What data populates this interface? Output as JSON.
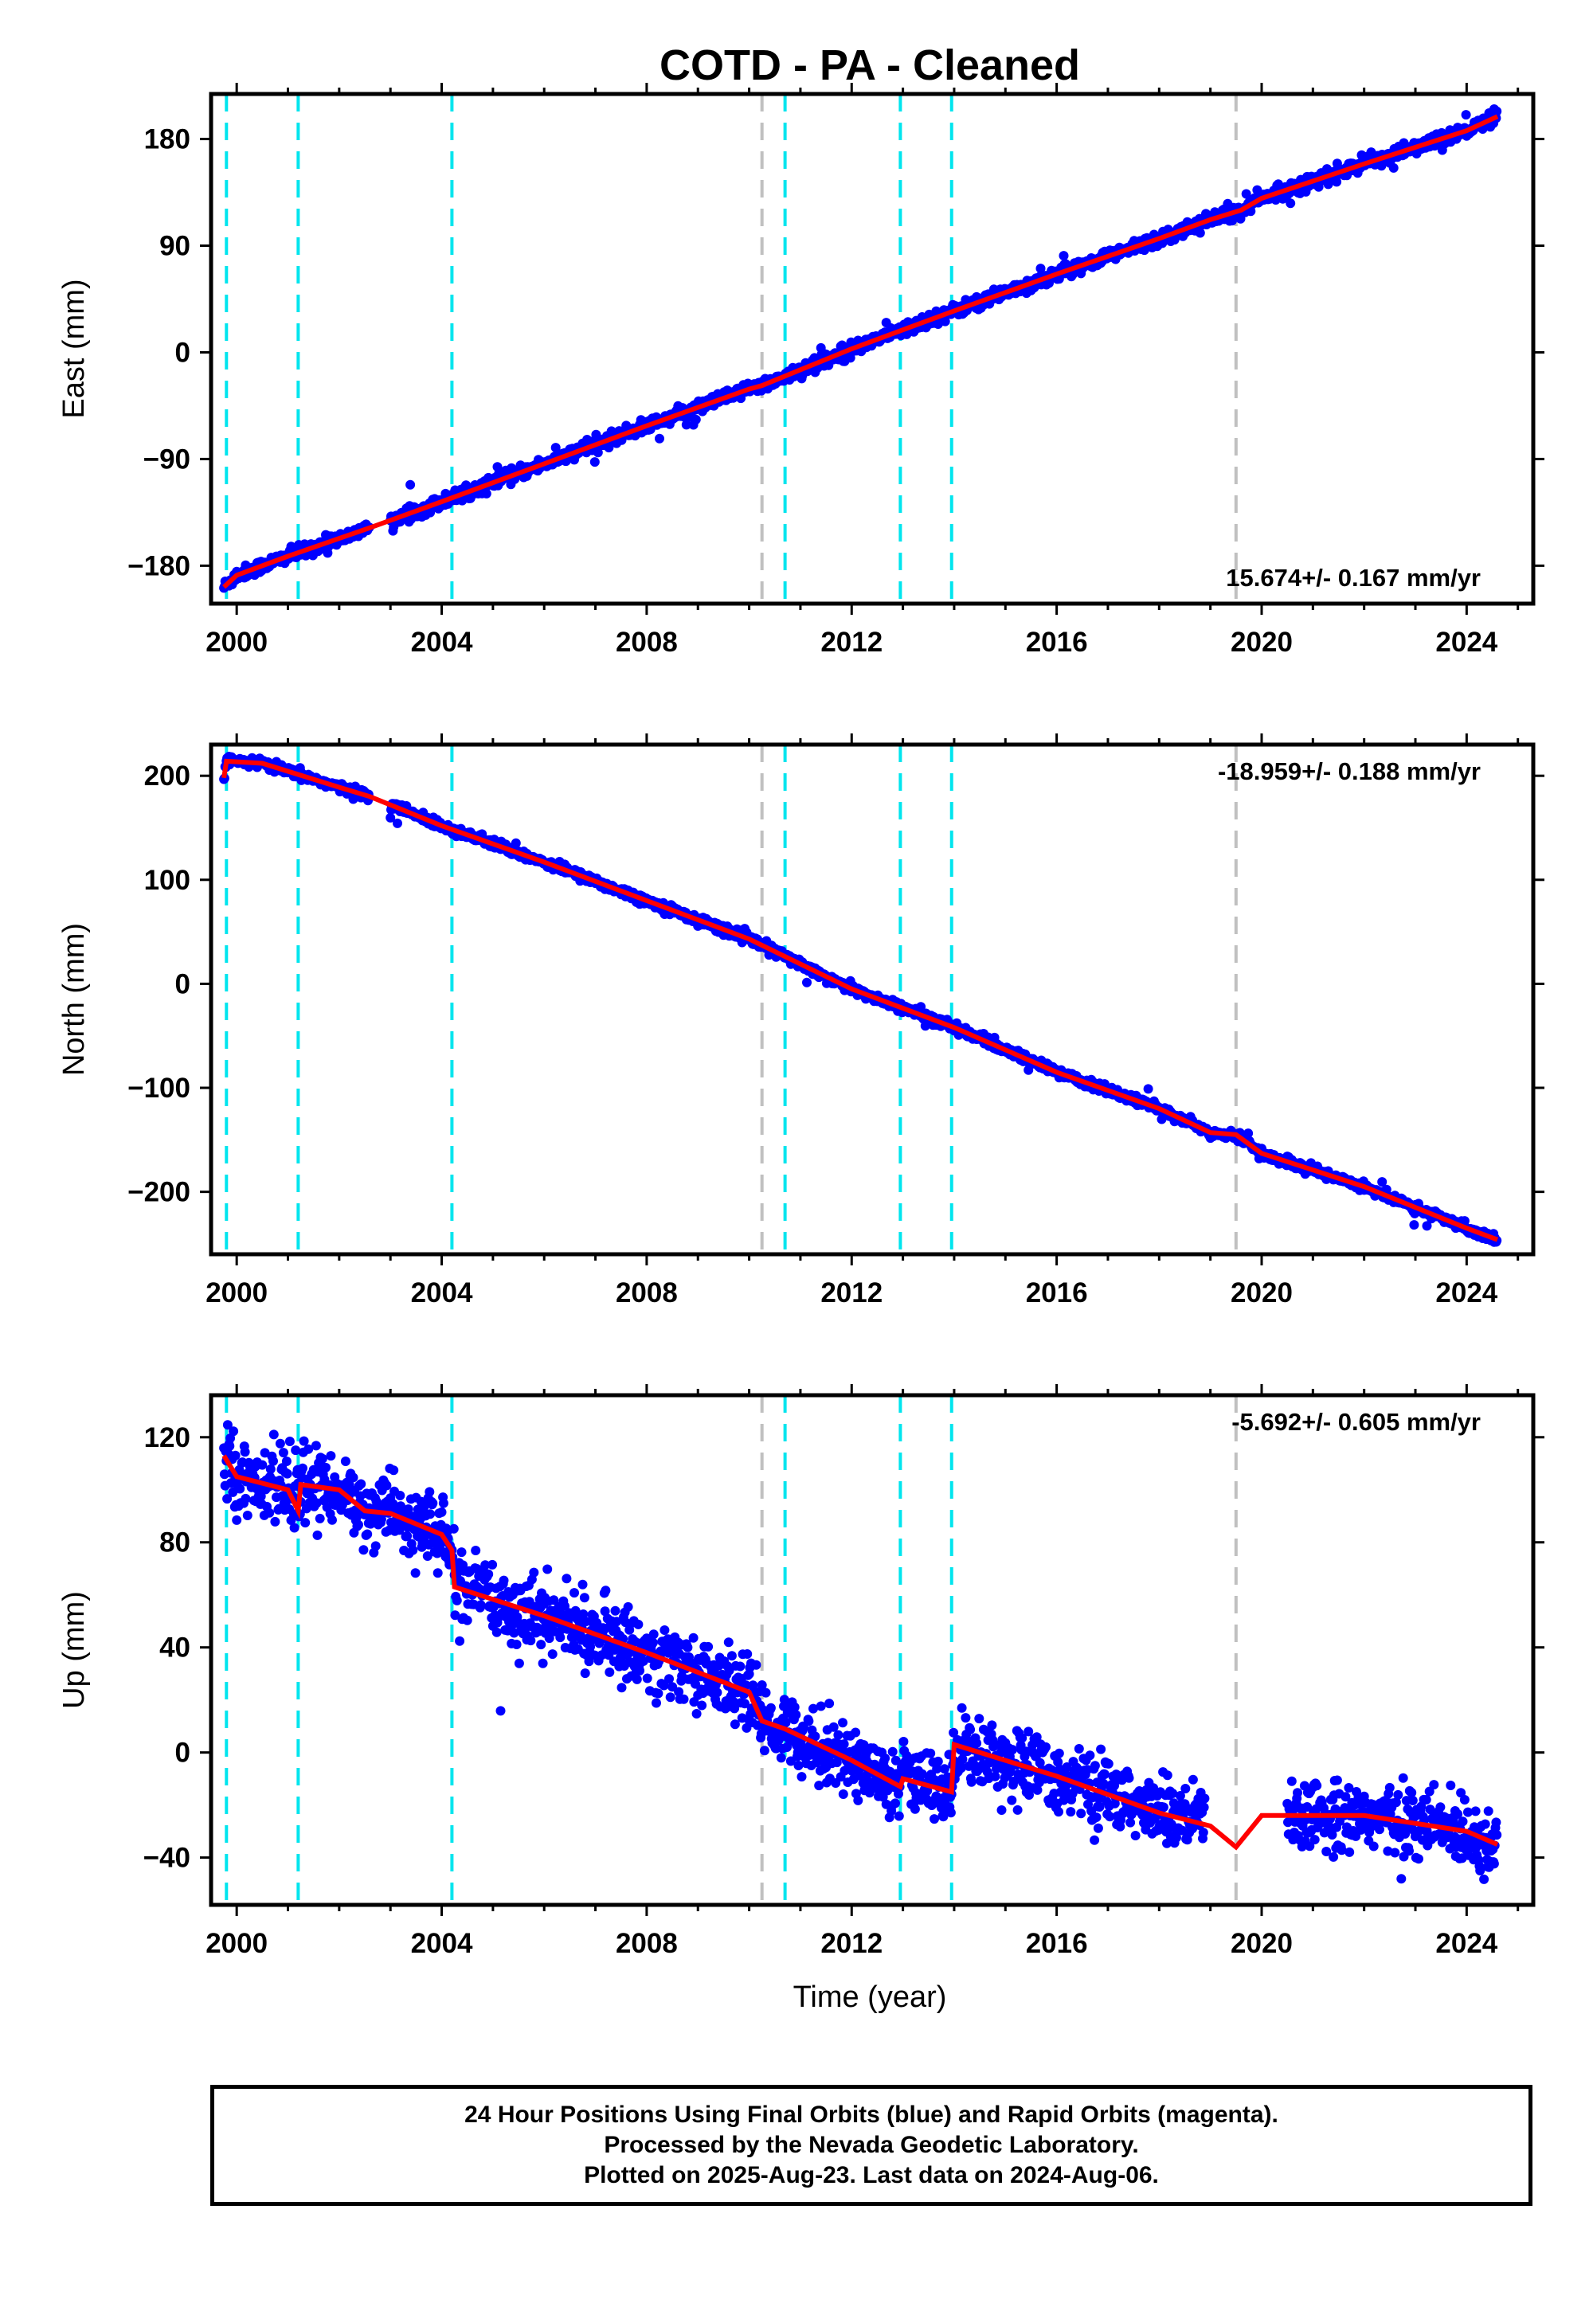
{
  "title": "COTD  - PA - Cleaned",
  "xlabel": "Time (year)",
  "x_ticks": [
    2000,
    2004,
    2008,
    2012,
    2016,
    2020,
    2024
  ],
  "xlim": [
    1999.5,
    2025.3
  ],
  "event_lines": [
    {
      "year": 1999.8,
      "color": "#00e5ee",
      "style": "dashed"
    },
    {
      "year": 2001.2,
      "color": "#00e5ee",
      "style": "dashed"
    },
    {
      "year": 2004.2,
      "color": "#00e5ee",
      "style": "dashed"
    },
    {
      "year": 2010.25,
      "color": "#c0c0c0",
      "style": "dashed"
    },
    {
      "year": 2010.7,
      "color": "#00e5ee",
      "style": "dashed"
    },
    {
      "year": 2012.95,
      "color": "#00e5ee",
      "style": "dashed"
    },
    {
      "year": 2013.95,
      "color": "#00e5ee",
      "style": "dashed"
    },
    {
      "year": 2019.5,
      "color": "#c0c0c0",
      "style": "dashed"
    }
  ],
  "colors": {
    "points": "#0000ff",
    "model": "#ff0000",
    "cyan": "#00e5ee",
    "gray": "#c0c0c0"
  },
  "chart_data": [
    {
      "type": "scatter",
      "component": "East",
      "ylabel": "East (mm)",
      "ylim": [
        -212,
        218
      ],
      "y_ticks": [
        -180,
        -90,
        0,
        90,
        180
      ],
      "rate_text": "15.674+/- 0.167 mm/yr",
      "rate_position": "bottom-right",
      "series": [
        {
          "name": "24 Hour Positions Using Final Orbits (blue)",
          "points_from": "model",
          "scatter_mm": 5
        },
        {
          "name": "model",
          "x": [
            1999.75,
            2000.0,
            2001.0,
            2002.0,
            2002.6,
            2004.0,
            2006.0,
            2008.0,
            2010.0,
            2010.25,
            2012.0,
            2014.0,
            2016.0,
            2018.0,
            2019.0,
            2019.6,
            2020.0,
            2022.0,
            2024.0,
            2024.6
          ],
          "y": [
            -198,
            -188,
            -172,
            -157,
            -148,
            -126,
            -94,
            -62,
            -31,
            -28,
            3,
            35,
            66,
            96,
            112,
            120,
            130,
            159,
            187,
            199
          ]
        }
      ],
      "gap": [
        2002.6,
        2003.0
      ]
    },
    {
      "type": "scatter",
      "component": "North",
      "ylabel": "North (mm)",
      "ylim": [
        -260,
        230
      ],
      "y_ticks": [
        -200,
        -100,
        0,
        100,
        200
      ],
      "rate_text": "-18.959+/- 0.188 mm/yr",
      "rate_position": "top-right",
      "series": [
        {
          "name": "24 Hour Positions Using Final Orbits (blue)",
          "points_from": "model",
          "scatter_mm": 4
        },
        {
          "name": "model",
          "x": [
            1999.75,
            1999.8,
            2000.5,
            2002.0,
            2002.6,
            2004.0,
            2006.0,
            2008.0,
            2010.0,
            2010.25,
            2012.0,
            2014.0,
            2016.0,
            2018.0,
            2019.0,
            2019.5,
            2020.0,
            2022.0,
            2024.0,
            2024.6
          ],
          "y": [
            198,
            214,
            212,
            189,
            180,
            152,
            117,
            80,
            43,
            37,
            -5,
            -42,
            -85,
            -120,
            -143,
            -145,
            -163,
            -195,
            -235,
            -246
          ]
        }
      ],
      "gap": [
        2002.6,
        2003.0
      ]
    },
    {
      "type": "scatter",
      "component": "Up",
      "ylabel": "Up (mm)",
      "ylim": [
        -58,
        136
      ],
      "y_ticks": [
        -40,
        0,
        40,
        80,
        120
      ],
      "rate_text": "-5.692+/- 0.605 mm/yr",
      "rate_position": "top-right",
      "series": [
        {
          "name": "24 Hour Positions Using Final Orbits (blue)",
          "points_from": "model",
          "scatter_mm": 12
        },
        {
          "name": "model",
          "x": [
            1999.75,
            2000.0,
            2001.0,
            2001.2,
            2001.25,
            2002.0,
            2002.5,
            2003.0,
            2004.0,
            2004.2,
            2004.25,
            2006.0,
            2008.0,
            2010.0,
            2010.25,
            2010.7,
            2012.0,
            2012.95,
            2013.0,
            2013.95,
            2014.0,
            2016.0,
            2018.0,
            2019.0,
            2019.5,
            2020.0,
            2022.0,
            2024.0,
            2024.6
          ],
          "y": [
            113,
            105,
            100,
            92,
            102,
            100,
            92,
            91,
            83,
            77,
            63,
            52,
            38,
            23,
            12,
            9,
            -3,
            -13,
            -10,
            -15,
            3,
            -9,
            -23,
            -28,
            -36,
            -24,
            -24,
            -30,
            -35
          ]
        }
      ],
      "gap": [
        2018.9,
        2020.5
      ]
    }
  ],
  "footer": {
    "line1": "24 Hour Positions Using Final Orbits (blue) and Rapid Orbits (magenta).",
    "line2": "Processed by the Nevada Geodetic Laboratory.",
    "line3": "Plotted on 2025-Aug-23. Last data on 2024-Aug-06."
  }
}
